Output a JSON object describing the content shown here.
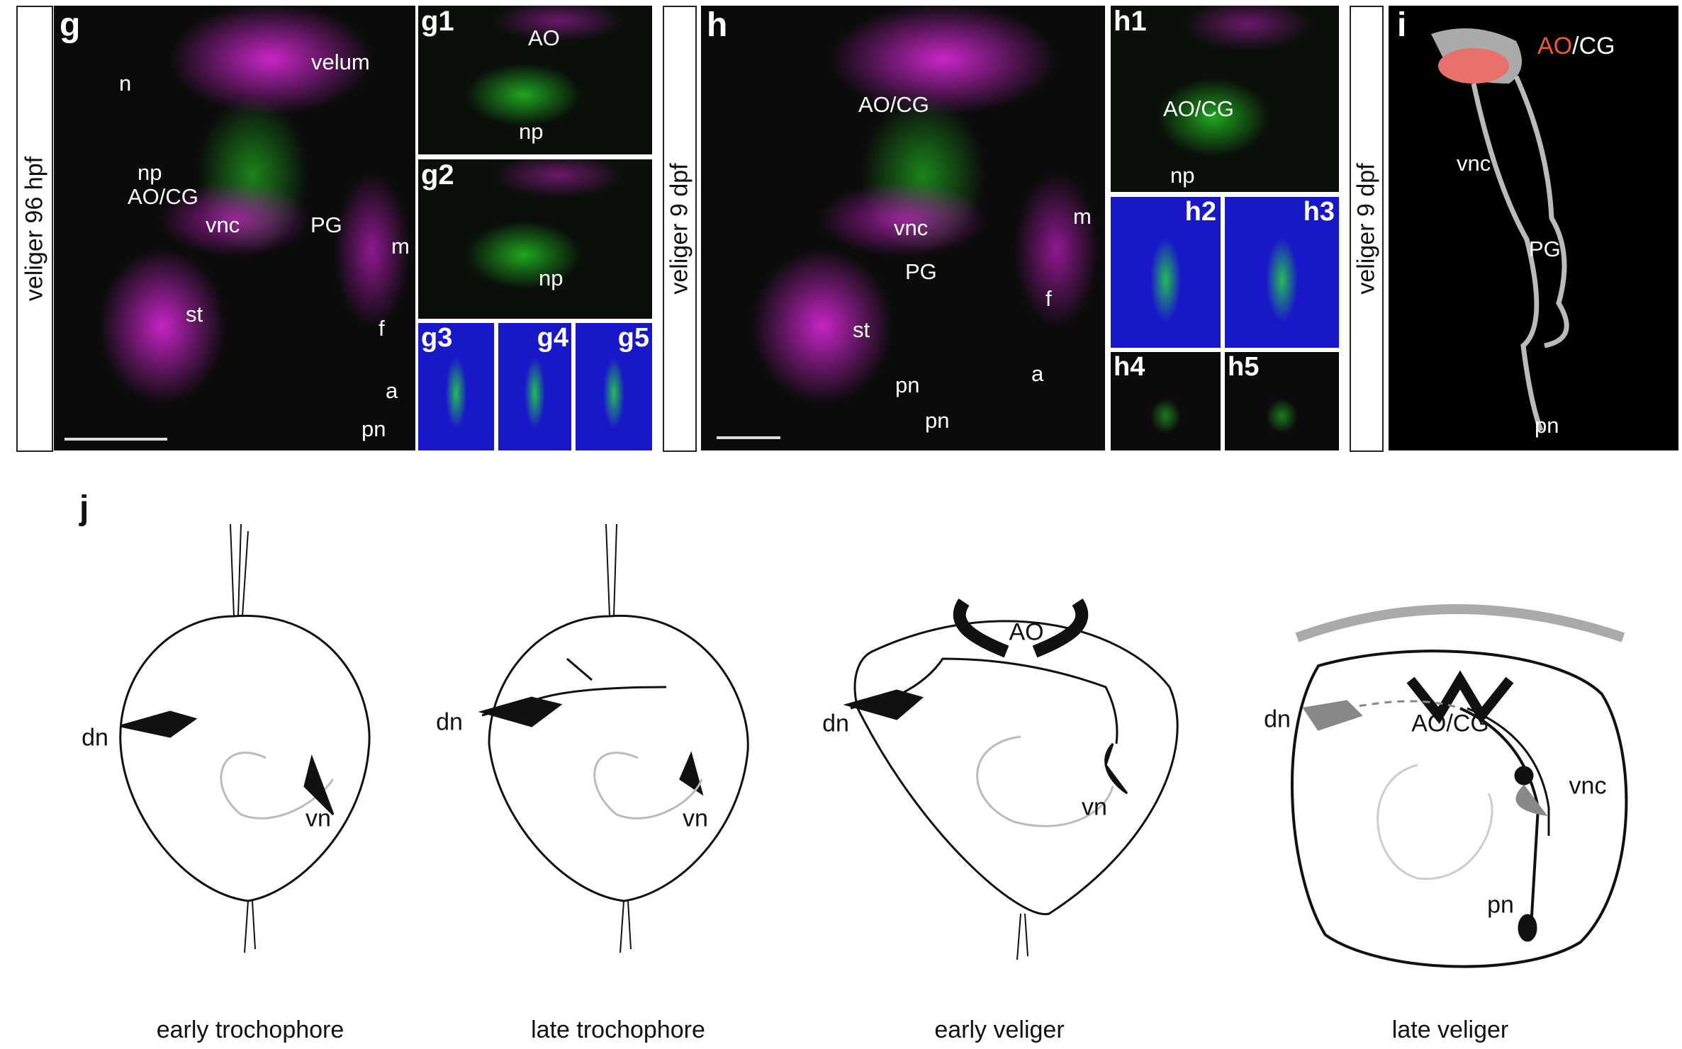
{
  "panels": {
    "g": {
      "letter": "g",
      "side": "veliger 96 hpf",
      "labels": [
        "velum",
        "n",
        "np",
        "AO/CG",
        "vnc",
        "PG",
        "m",
        "st",
        "f",
        "a",
        "pn"
      ],
      "sub": [
        {
          "letter": "g1",
          "labels": [
            "AO",
            "np"
          ]
        },
        {
          "letter": "g2",
          "labels": [
            "np"
          ]
        },
        {
          "letter": "g3"
        },
        {
          "letter": "g4"
        },
        {
          "letter": "g5"
        }
      ]
    },
    "h": {
      "letter": "h",
      "side": "veliger 9 dpf",
      "labels": [
        "AO/CG",
        "vnc",
        "PG",
        "m",
        "f",
        "st",
        "a",
        "pn",
        "pn"
      ],
      "sub": [
        {
          "letter": "h1",
          "labels": [
            "AO/CG",
            "np"
          ]
        },
        {
          "letter": "h2"
        },
        {
          "letter": "h3"
        },
        {
          "letter": "h4"
        },
        {
          "letter": "h5"
        }
      ]
    },
    "i": {
      "letter": "i",
      "side": "veliger 9 dpf",
      "label_ao": "AO",
      "label_cg": "/CG",
      "labels": [
        "vnc",
        "PG",
        "pn"
      ],
      "ao_color": "#f05a28"
    }
  },
  "j": {
    "letter": "j",
    "stages": [
      {
        "caption": "early trochophore",
        "labels": [
          "dn",
          "vn"
        ]
      },
      {
        "caption": "late trochophore",
        "labels": [
          "dn",
          "vn"
        ]
      },
      {
        "caption": "early veliger",
        "labels": [
          "AO",
          "dn",
          "vn"
        ]
      },
      {
        "caption": "late veliger",
        "labels": [
          "dn",
          "AO/CG",
          "vnc",
          "pn"
        ]
      }
    ]
  },
  "colors": {
    "magenta": "#d42ad4",
    "green": "#2ee62e",
    "blue": "#1818c8",
    "render_gray": "#c8c8c8"
  }
}
